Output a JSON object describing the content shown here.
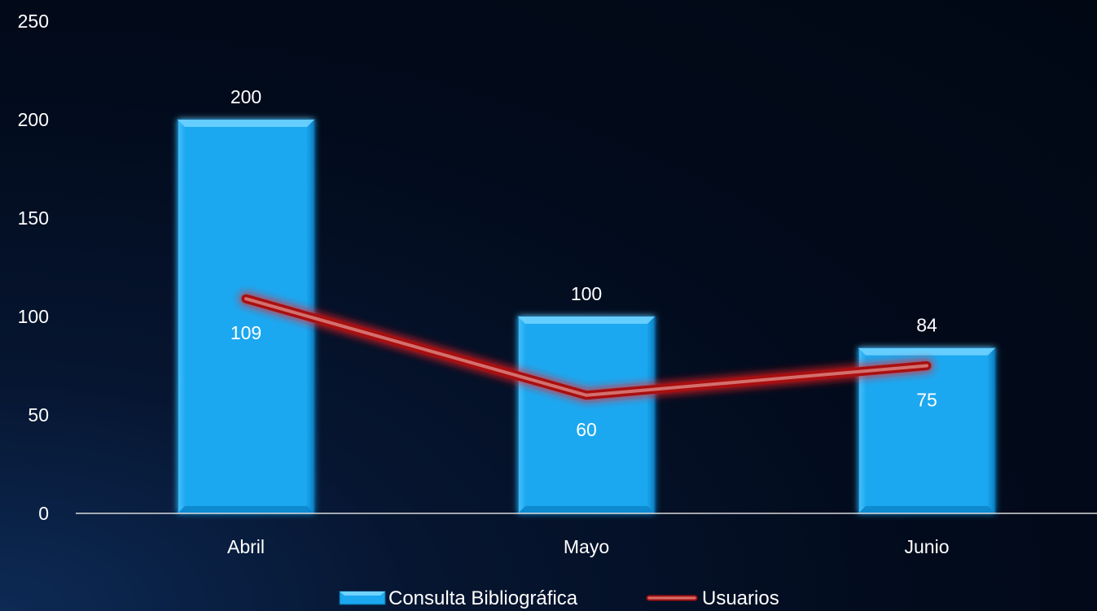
{
  "chart_data": {
    "type": "bar",
    "categories": [
      "Abril",
      "Mayo",
      "Junio"
    ],
    "series": [
      {
        "name": "Consulta Bibliográfica",
        "type": "bar",
        "values": [
          200,
          100,
          84
        ],
        "color": "#1ba8f0"
      },
      {
        "name": "Usuarios",
        "type": "line",
        "values": [
          109,
          60,
          75
        ],
        "color": "#c0504d"
      }
    ],
    "yticks": [
      0,
      50,
      100,
      150,
      200,
      250
    ],
    "ylim": [
      0,
      250
    ],
    "grid": false,
    "legend": "bottom-center",
    "title": "",
    "xlabel": "",
    "ylabel": ""
  }
}
